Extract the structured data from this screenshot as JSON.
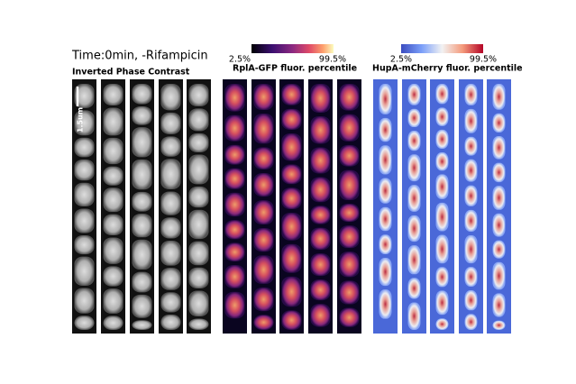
{
  "header": {
    "title": "Time:0min,  -Rifampicin"
  },
  "panels": [
    {
      "label": "Inverted Phase Contrast",
      "scale_bar": "1.5um"
    },
    {
      "label": "RplA-GFP fluor. percentile",
      "colorbar": {
        "min_label": "2.5%",
        "max_label": "99.5%"
      }
    },
    {
      "label": "HupA-mCherry fluor. percentile",
      "colorbar": {
        "min_label": "2.5%",
        "max_label": "99.5%"
      }
    }
  ]
}
